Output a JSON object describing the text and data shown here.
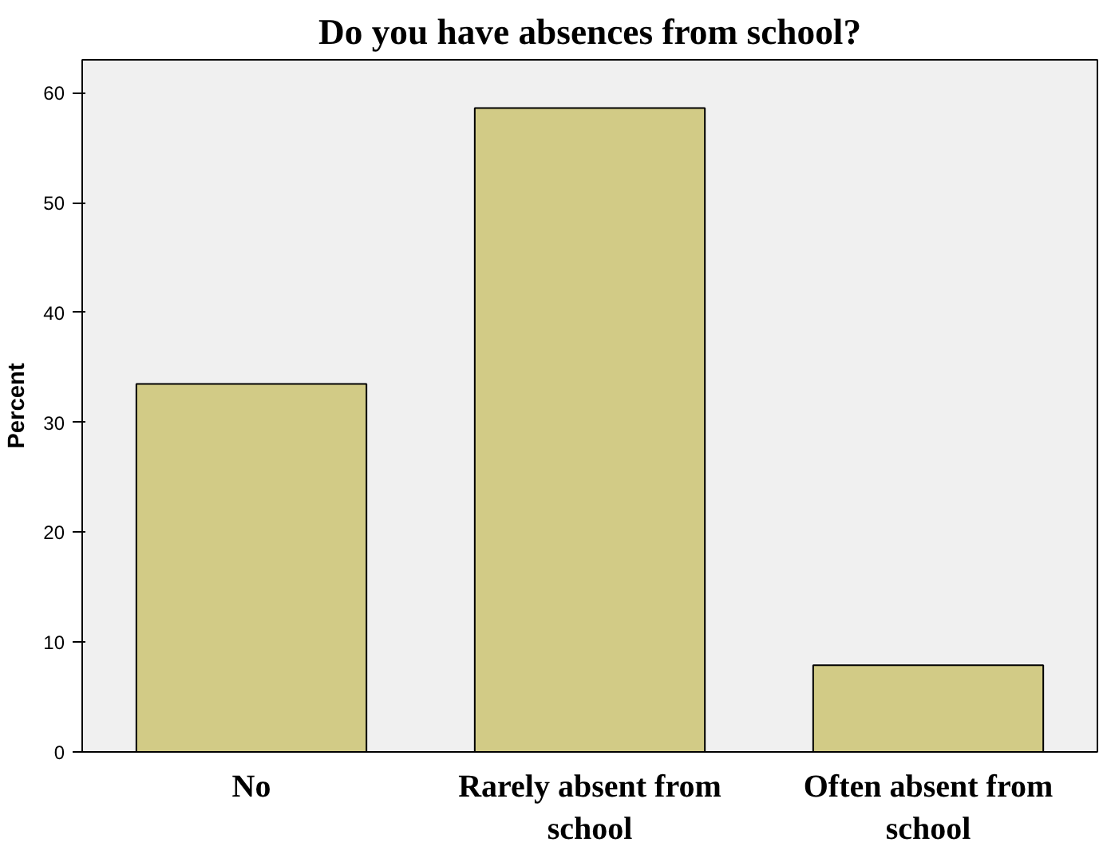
{
  "chart_data": {
    "type": "bar",
    "title": "Do you have absences from school?",
    "ylabel": "Percent",
    "categories": [
      "No",
      "Rarely absent from school",
      "Often absent from school"
    ],
    "values": [
      33.5,
      58.6,
      7.9
    ],
    "color": "#d2cb86",
    "ylim": [
      0,
      63
    ],
    "yticks": [
      0,
      10,
      20,
      30,
      40,
      50,
      60
    ],
    "grid": false
  }
}
